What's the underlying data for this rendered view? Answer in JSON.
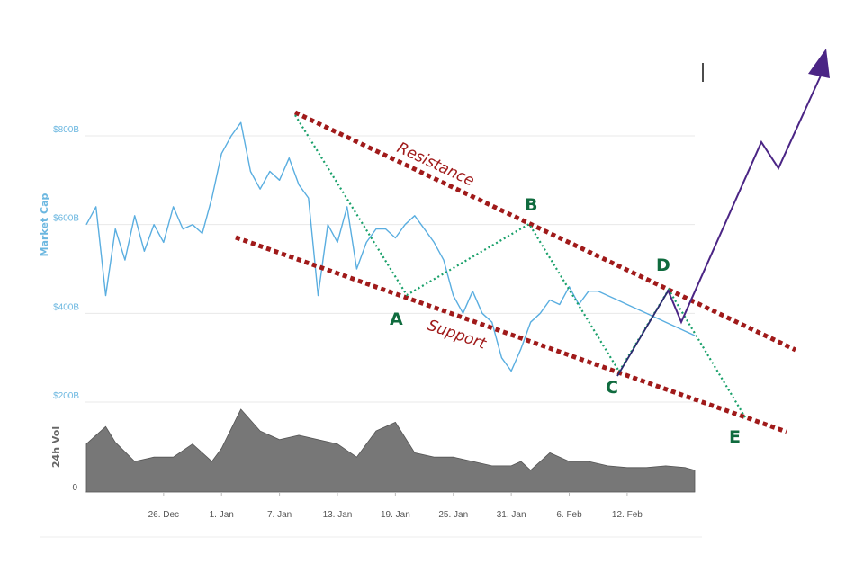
{
  "chart_data": [
    {
      "type": "line",
      "ylabel": "Market Cap",
      "y_ticks": [
        "$200B",
        "$400B",
        "$600B",
        "$800B"
      ],
      "y_tick_values": [
        200,
        400,
        600,
        800
      ],
      "ylim": [
        200,
        850
      ],
      "x_ticks": [
        "26. Dec",
        "1. Jan",
        "7. Jan",
        "13. Jan",
        "19. Jan",
        "25. Jan",
        "31. Jan",
        "6. Feb",
        "12. Feb"
      ],
      "grid": true,
      "series": [
        {
          "color": "#5aaee0",
          "x": [
            -8,
            -7,
            -6,
            -5,
            -4,
            -3,
            -2,
            -1,
            0,
            1,
            2,
            3,
            4,
            5,
            6,
            7,
            8,
            9,
            10,
            11,
            12,
            13,
            14,
            15,
            16,
            17,
            18,
            19,
            20,
            21,
            22,
            23,
            24,
            25,
            26,
            27,
            28,
            29,
            30,
            31,
            32,
            33,
            34,
            35,
            36,
            37,
            38,
            39,
            40,
            41,
            42,
            43,
            44,
            45,
            46,
            47,
            48,
            49,
            50,
            51,
            52,
            53,
            54,
            55
          ],
          "values": [
            600,
            640,
            440,
            590,
            520,
            620,
            540,
            600,
            560,
            640,
            590,
            600,
            580,
            660,
            760,
            800,
            830,
            720,
            680,
            720,
            700,
            750,
            690,
            660,
            440,
            600,
            560,
            640,
            500,
            560,
            590,
            590,
            570,
            600,
            620,
            590,
            560,
            520,
            440,
            400,
            450,
            400,
            380,
            300,
            270,
            320,
            380,
            400,
            430,
            420,
            460,
            420,
            450,
            450,
            440,
            430,
            420,
            410,
            400,
            390,
            380,
            370,
            360,
            350
          ]
        }
      ]
    },
    {
      "type": "area",
      "ylabel": "24h Vol",
      "y_ticks": [
        "0"
      ],
      "color": "#777777",
      "x": [
        -8,
        -6,
        -5,
        -3,
        -1,
        1,
        3,
        5,
        6,
        8,
        10,
        12,
        14,
        16,
        18,
        20,
        22,
        24,
        26,
        28,
        30,
        32,
        34,
        36,
        37,
        38,
        40,
        42,
        44,
        46,
        48,
        50,
        52,
        54,
        55
      ],
      "values": [
        55,
        75,
        57,
        35,
        40,
        40,
        55,
        35,
        50,
        95,
        70,
        60,
        65,
        60,
        55,
        40,
        70,
        80,
        45,
        40,
        40,
        35,
        30,
        30,
        35,
        25,
        45,
        35,
        35,
        30,
        28,
        28,
        30,
        28,
        25
      ]
    }
  ],
  "annotations": {
    "resistance_label": "Resistance",
    "support_label": "Support",
    "points": [
      "A",
      "B",
      "C",
      "D",
      "E"
    ]
  }
}
